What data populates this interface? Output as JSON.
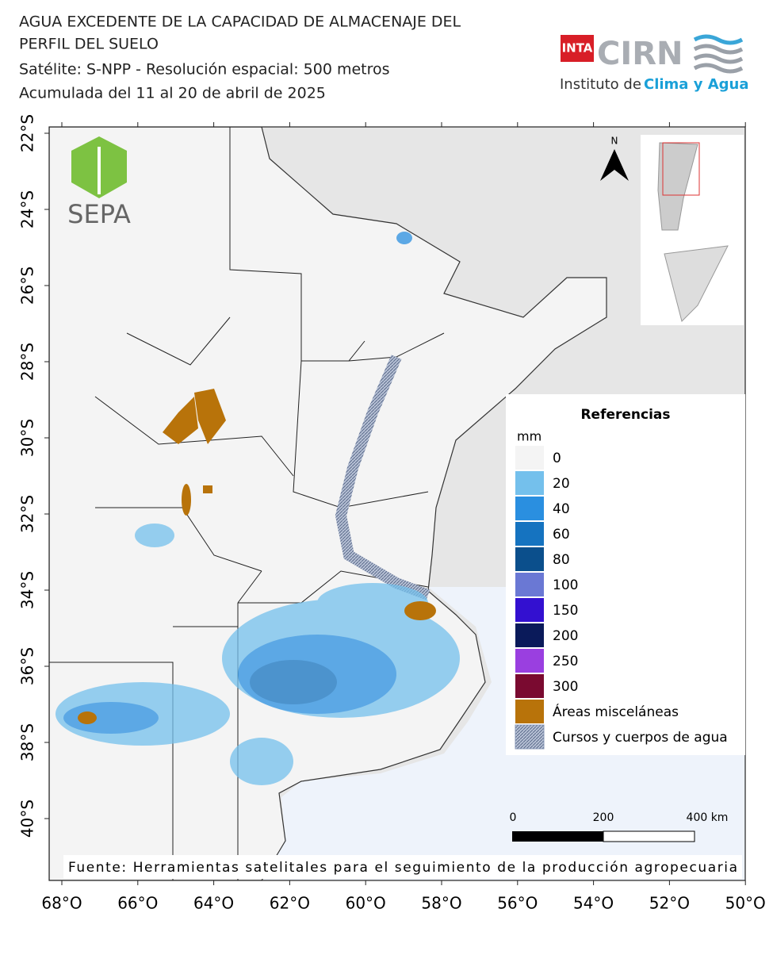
{
  "header": {
    "title_lines": [
      "AGUA EXCEDENTE DE LA CAPACIDAD DE ALMACENAJE DEL",
      "PERFIL DEL SUELO",
      "Satélite: S-NPP - Resolución espacial: 500 metros",
      "Acumulada del 11 al 20 de abril de 2025"
    ]
  },
  "logos": {
    "inta": "INTA",
    "cirn": "CIRN",
    "institute": "Instituto de",
    "institute_accent": "Clima y Agua",
    "sepa": "SEPA",
    "north": "N"
  },
  "map": {
    "lat_ticks": [
      {
        "value": -22,
        "label": "22°S"
      },
      {
        "value": -24,
        "label": "24°S"
      },
      {
        "value": -26,
        "label": "26°S"
      },
      {
        "value": -28,
        "label": "28°S"
      },
      {
        "value": -30,
        "label": "30°S"
      },
      {
        "value": -32,
        "label": "32°S"
      },
      {
        "value": -34,
        "label": "34°S"
      },
      {
        "value": -36,
        "label": "36°S"
      },
      {
        "value": -38,
        "label": "38°S"
      },
      {
        "value": -40,
        "label": "40°S"
      }
    ],
    "lon_ticks": [
      {
        "value": -68,
        "label": "68°O"
      },
      {
        "value": -66,
        "label": "66°O"
      },
      {
        "value": -64,
        "label": "64°O"
      },
      {
        "value": -62,
        "label": "62°O"
      },
      {
        "value": -60,
        "label": "60°O"
      },
      {
        "value": -58,
        "label": "58°O"
      },
      {
        "value": -56,
        "label": "56°O"
      },
      {
        "value": -54,
        "label": "54°O"
      },
      {
        "value": -52,
        "label": "52°O"
      },
      {
        "value": -50,
        "label": "50°O"
      }
    ]
  },
  "legend": {
    "title": "Referencias",
    "unit": "mm",
    "items": [
      {
        "label": "0",
        "color": "#f4f4f4"
      },
      {
        "label": "20",
        "color": "#74c0ec"
      },
      {
        "label": "40",
        "color": "#2a8fe0"
      },
      {
        "label": "60",
        "color": "#1573c0"
      },
      {
        "label": "80",
        "color": "#0b4f8c"
      },
      {
        "label": "100",
        "color": "#6a78d4"
      },
      {
        "label": "150",
        "color": "#3310d0"
      },
      {
        "label": "200",
        "color": "#0a1a5a"
      },
      {
        "label": "250",
        "color": "#9a3fe0"
      },
      {
        "label": "300",
        "color": "#7a0a30"
      },
      {
        "label": "Áreas misceláneas",
        "color": "#b8730a"
      },
      {
        "label": "Cursos y cuerpos de agua",
        "color": "#8a9ab8"
      }
    ]
  },
  "scale_bar": {
    "labels": [
      "0",
      "200",
      "400 km"
    ]
  },
  "source": "Fuente: Herramientas satelitales para el seguimiento de la producción agropecuaria"
}
